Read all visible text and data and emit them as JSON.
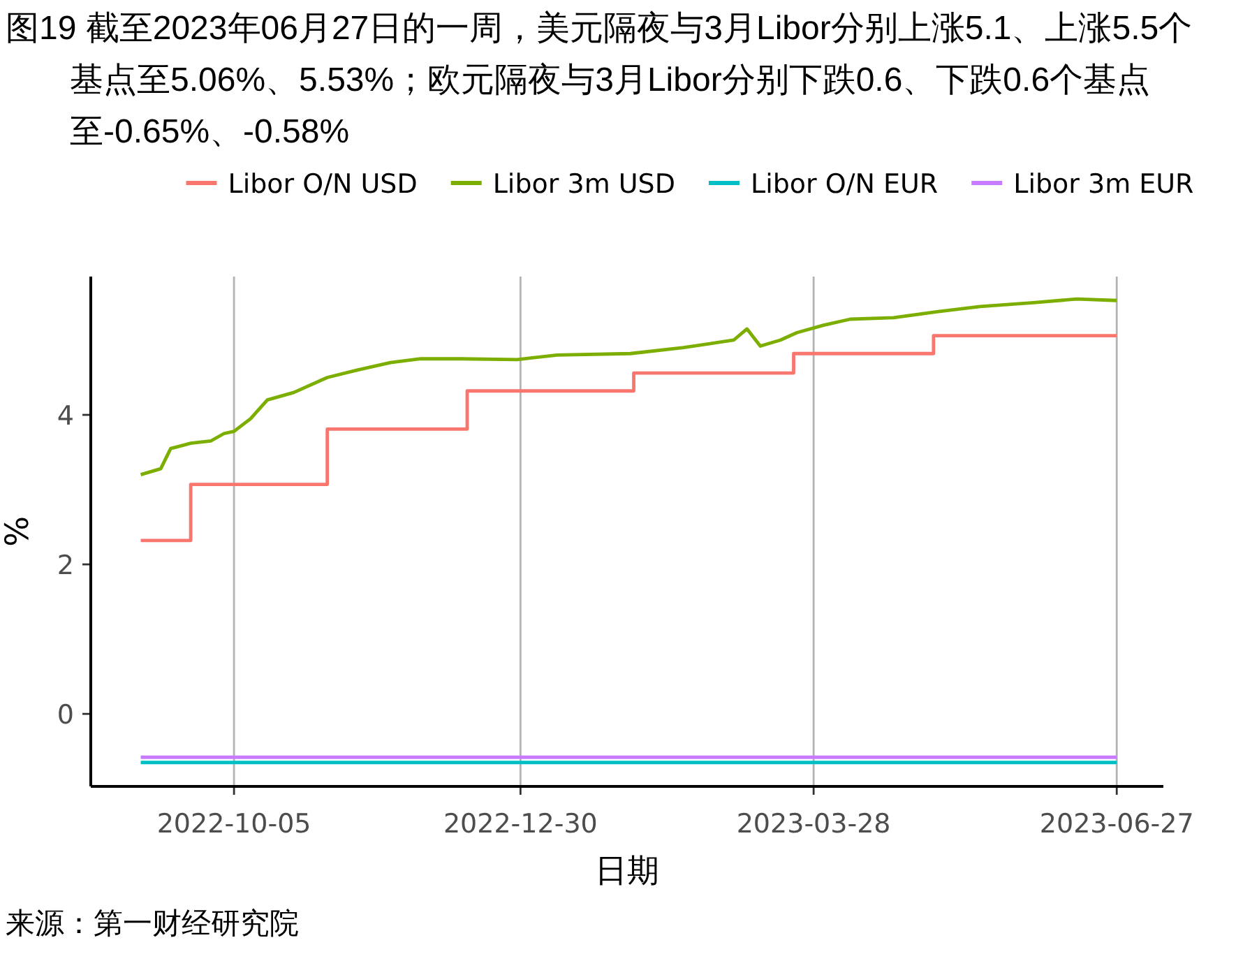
{
  "chart_data": {
    "type": "line",
    "title": "图19  截至2023年06月27日的一周，美元隔夜与3月Libor分别上涨5.1、上涨5.5个基点至5.06%、5.53%；欧元隔夜与3月Libor分别下跌0.6、下跌0.6个基点至-0.65%、-0.58%",
    "xlabel": "日期",
    "ylabel": "%",
    "annotations": [
      "来源：第一财经研究院"
    ],
    "xlim": [
      "2022-08-23",
      "2023-07-11"
    ],
    "xticks": [
      {
        "value": "2022-10-05",
        "label": "2022-10-05"
      },
      {
        "value": "2022-12-30",
        "label": "2022-12-30"
      },
      {
        "value": "2023-03-28",
        "label": "2023-03-28"
      },
      {
        "value": "2023-06-27",
        "label": "2023-06-27"
      }
    ],
    "ylim": [
      -0.97,
      5.85
    ],
    "yticks": [
      0,
      2,
      4
    ],
    "grid": "x",
    "legend": "top",
    "line_style": "solid",
    "series": [
      {
        "name": "Libor O/N USD",
        "color": "#f8766d",
        "type": "step",
        "x": [
          "2022-09-07",
          "2022-09-22",
          "2022-11-02",
          "2022-12-14",
          "2023-02-02",
          "2023-03-22",
          "2023-05-03",
          "2023-06-27"
        ],
        "values": [
          2.32,
          3.07,
          3.81,
          4.32,
          4.56,
          4.82,
          5.06,
          5.06
        ]
      },
      {
        "name": "Libor 3m USD",
        "color": "#7cae00",
        "x": [
          "2022-09-07",
          "2022-09-13",
          "2022-09-16",
          "2022-09-22",
          "2022-09-28",
          "2022-10-02",
          "2022-10-05",
          "2022-10-10",
          "2022-10-15",
          "2022-10-23",
          "2022-11-02",
          "2022-11-11",
          "2022-11-21",
          "2022-11-30",
          "2022-12-12",
          "2022-12-29",
          "2023-01-10",
          "2023-02-01",
          "2023-02-17",
          "2023-03-04",
          "2023-03-08",
          "2023-03-12",
          "2023-03-18",
          "2023-03-23",
          "2023-03-31",
          "2023-04-08",
          "2023-04-21",
          "2023-05-04",
          "2023-05-17",
          "2023-06-02",
          "2023-06-15",
          "2023-06-27"
        ],
        "values": [
          3.2,
          3.28,
          3.55,
          3.62,
          3.65,
          3.75,
          3.78,
          3.95,
          4.2,
          4.3,
          4.5,
          4.6,
          4.7,
          4.75,
          4.75,
          4.74,
          4.8,
          4.82,
          4.9,
          5.0,
          5.15,
          4.92,
          5.0,
          5.1,
          5.2,
          5.28,
          5.3,
          5.38,
          5.45,
          5.5,
          5.55,
          5.53
        ]
      },
      {
        "name": "Libor O/N EUR",
        "color": "#00bfc4",
        "x": [
          "2022-09-07",
          "2023-06-27"
        ],
        "values": [
          -0.65,
          -0.65
        ]
      },
      {
        "name": "Libor 3m EUR",
        "color": "#c77cff",
        "x": [
          "2022-09-07",
          "2023-06-27"
        ],
        "values": [
          -0.58,
          -0.58
        ]
      }
    ]
  }
}
